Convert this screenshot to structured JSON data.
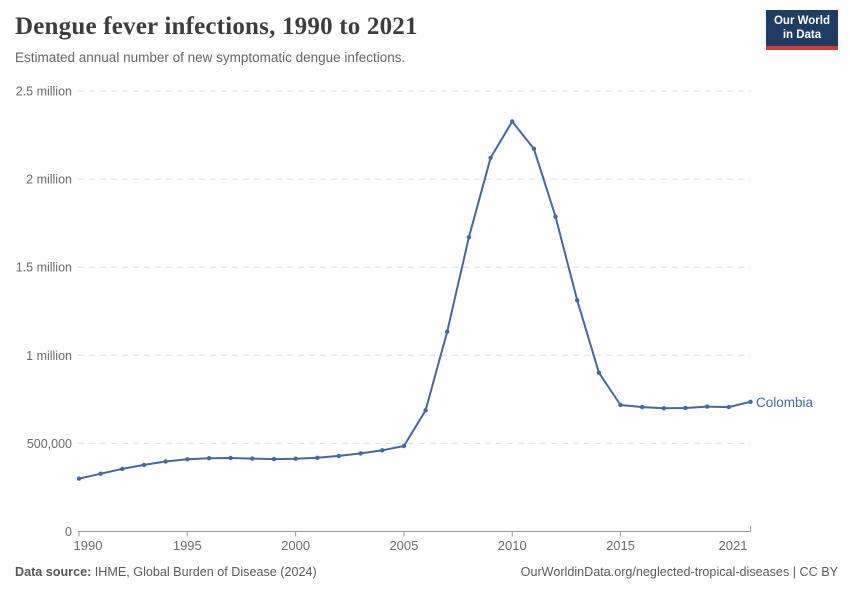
{
  "header": {
    "title": "Dengue fever infections, 1990 to 2021",
    "subtitle": "Estimated annual number of new symptomatic dengue infections.",
    "logo": {
      "line1": "Our World",
      "line2": "in Data"
    }
  },
  "chart_data": {
    "type": "line",
    "title": "Dengue fever infections, 1990 to 2021",
    "xlabel": "",
    "ylabel": "",
    "xlim": [
      1990,
      2021
    ],
    "ylim": [
      0,
      2500000
    ],
    "grid": "horizontal-dashed",
    "legend_position": "end-of-line-label",
    "x": [
      1990,
      1991,
      1992,
      1993,
      1994,
      1995,
      1996,
      1997,
      1998,
      1999,
      2000,
      2001,
      2002,
      2003,
      2004,
      2005,
      2006,
      2007,
      2008,
      2009,
      2010,
      2011,
      2012,
      2013,
      2014,
      2015,
      2016,
      2017,
      2018,
      2019,
      2020,
      2021
    ],
    "series": [
      {
        "name": "Colombia",
        "color": "#4567a3",
        "values": [
          300000,
          328000,
          355000,
          378000,
          397000,
          410000,
          416000,
          417000,
          414000,
          411000,
          413000,
          418000,
          429000,
          443000,
          461000,
          485000,
          688000,
          1134000,
          1670000,
          2121000,
          2327000,
          2172000,
          1787000,
          1312000,
          901000,
          718000,
          706000,
          699000,
          701000,
          709000,
          706000,
          736000
        ]
      }
    ],
    "yticks": [
      {
        "value": 0,
        "label": "0"
      },
      {
        "value": 500000,
        "label": "500,000"
      },
      {
        "value": 1000000,
        "label": "1 million"
      },
      {
        "value": 1500000,
        "label": "1.5 million"
      },
      {
        "value": 2000000,
        "label": "2 million"
      },
      {
        "value": 2500000,
        "label": "2.5 million"
      }
    ],
    "xticks": [
      1990,
      1995,
      2000,
      2005,
      2010,
      2015,
      2021
    ]
  },
  "footer": {
    "source_label": "Data source:",
    "source_value": "IHME, Global Burden of Disease (2024)",
    "link": "OurWorldinData.org/neglected-tropical-diseases | CC BY"
  },
  "colors": {
    "line": "#4567a3",
    "grid": "#dedede",
    "axis": "#9a9a9a",
    "tick_label": "#6b6b6b",
    "title": "#3d3d3d",
    "subtitle": "#666666",
    "logo_bg": "#1d3d63",
    "logo_bar": "#d73a34"
  }
}
